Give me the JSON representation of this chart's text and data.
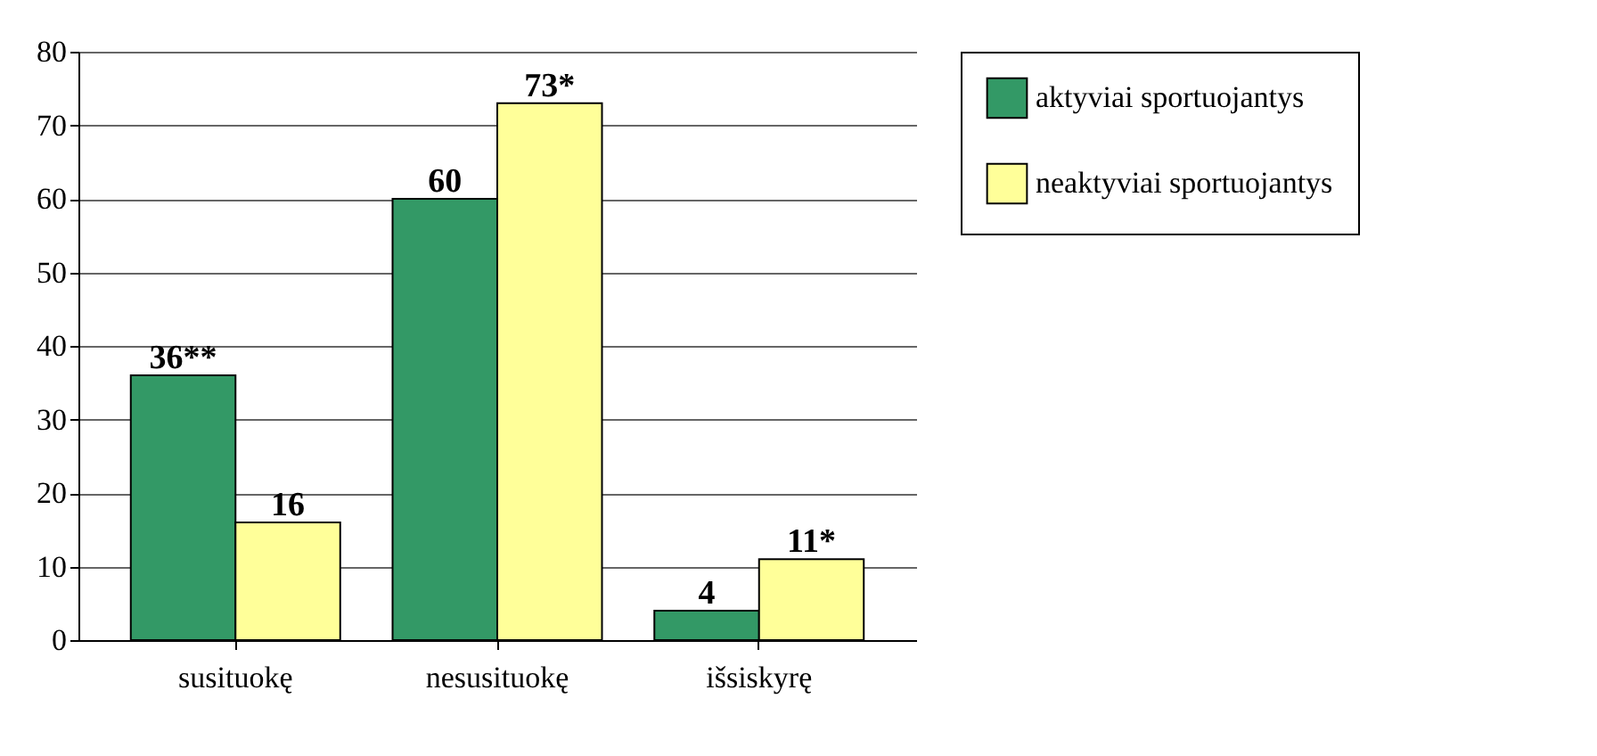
{
  "chart_data": {
    "type": "bar",
    "categories": [
      "susituokę",
      "nesusituokę",
      "išsiskyrę"
    ],
    "series": [
      {
        "name": "aktyviai sportuojantys",
        "color": "#339966",
        "values": [
          36,
          60,
          4
        ],
        "value_labels": [
          "36**",
          "60",
          "4"
        ]
      },
      {
        "name": "neaktyviai sportuojantys",
        "color": "#ffff99",
        "values": [
          16,
          73,
          11
        ],
        "value_labels": [
          "16",
          "73*",
          "11*"
        ]
      }
    ],
    "ylim": [
      0,
      80
    ],
    "yticks": [
      0,
      10,
      20,
      30,
      40,
      50,
      60,
      70,
      80
    ],
    "grid": "y",
    "legend": "right"
  }
}
